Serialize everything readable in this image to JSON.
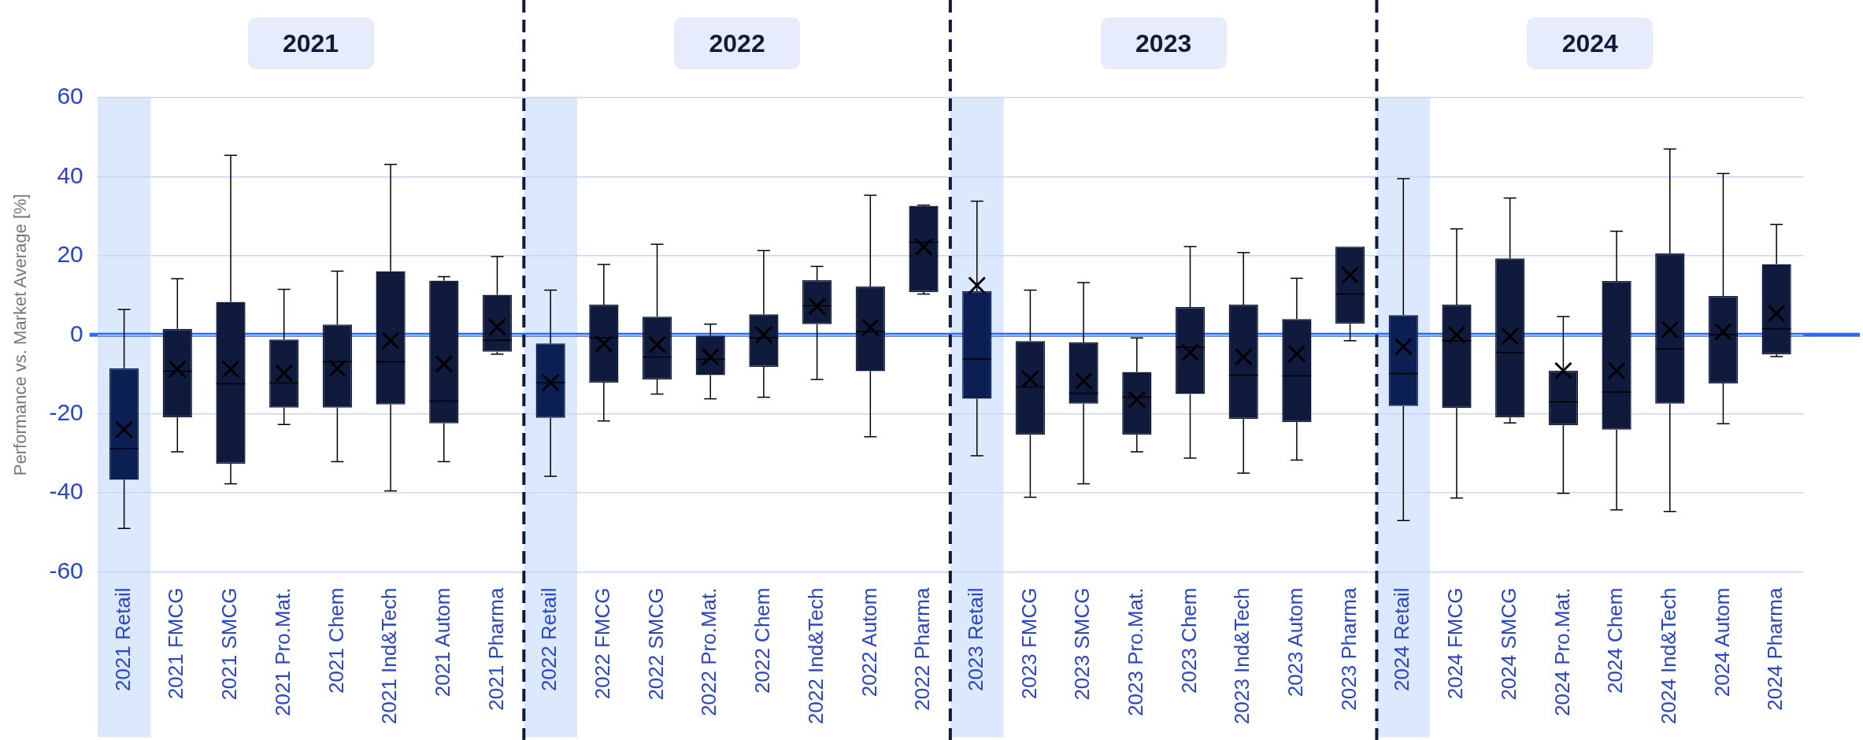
{
  "chart_data": {
    "type": "box",
    "ylabel": "Performance vs. Market Average [%]",
    "categories": [
      "2021 Retail",
      "2021 FMCG",
      "2021 SMCG",
      "2021 Pro.Mat.",
      "2021 Chem",
      "2021 Ind&Tech",
      "2021 Autom",
      "2021 Pharma",
      "2022 Retail",
      "2022 FMCG",
      "2022 SMCG",
      "2022 Pro.Mat.",
      "2022 Chem",
      "2022 Ind&Tech",
      "2022 Autom",
      "2022 Pharma",
      "2023 Retail",
      "2023 FMCG",
      "2023 SMCG",
      "2023 Pro.Mat.",
      "2023 Chem",
      "2023 Ind&Tech",
      "2023 Autom",
      "2023 Pharma",
      "2024 Retail",
      "2024 FMCG",
      "2024 SMCG",
      "2024 Pro.Mat.",
      "2024 Chem",
      "2024 Ind&Tech",
      "2024 Autom",
      "2024 Pharma"
    ],
    "boxes": [
      {
        "low": -49,
        "q1": -36.7,
        "median": -28.8,
        "q3": -8.5,
        "high": 6.4,
        "mean": -24
      },
      {
        "low": -29.6,
        "q1": -20.9,
        "median": -9.2,
        "q3": 1.5,
        "high": 14.2,
        "mean": -8.7
      },
      {
        "low": -37.7,
        "q1": -32.6,
        "median": -12.4,
        "q3": 8.3,
        "high": 45.4,
        "mean": -8.7
      },
      {
        "low": -22.7,
        "q1": -18.4,
        "median": -12.2,
        "q3": -1.2,
        "high": 11.5,
        "mean": -9.7
      },
      {
        "low": -32.1,
        "q1": -18.4,
        "median": -6.8,
        "q3": 2.6,
        "high": 16.1,
        "mean": -8.5
      },
      {
        "low": -39.5,
        "q1": -17.6,
        "median": -6.8,
        "q3": 16.1,
        "high": 43.1,
        "mean": -1.5
      },
      {
        "low": -32.1,
        "q1": -22.4,
        "median": -16.8,
        "q3": 13.7,
        "high": 14.7,
        "mean": -7.4
      },
      {
        "low": -4.9,
        "q1": -4.3,
        "median": -1.4,
        "q3": 10.1,
        "high": 19.8,
        "mean": 2
      },
      {
        "low": -35.8,
        "q1": -21,
        "median": -12.1,
        "q3": -2.2,
        "high": 11.3,
        "mean": -12.1
      },
      {
        "low": -21.8,
        "q1": -12.1,
        "median": -0.8,
        "q3": 7.6,
        "high": 17.8,
        "mean": -2.3
      },
      {
        "low": -15,
        "q1": -11.3,
        "median": -5.6,
        "q3": 4.6,
        "high": 22.9,
        "mean": -2.5
      },
      {
        "low": -16.2,
        "q1": -10.2,
        "median": -6.2,
        "q3": -0.2,
        "high": 2.7,
        "mean": -5.6
      },
      {
        "low": -15.8,
        "q1": -8.1,
        "median": -0.8,
        "q3": 5.2,
        "high": 21.3,
        "mean": 0
      },
      {
        "low": -11.3,
        "q1": 2.7,
        "median": 7.3,
        "q3": 13.8,
        "high": 17.3,
        "mean": 7.2
      },
      {
        "low": -25.8,
        "q1": -9.2,
        "median": 0.8,
        "q3": 12.2,
        "high": 35.3,
        "mean": 1.9
      },
      {
        "low": 10.3,
        "q1": 10.8,
        "median": 23.4,
        "q3": 32.6,
        "high": 32.8,
        "mean": 22.2
      },
      {
        "low": -30.6,
        "q1": -16.2,
        "median": -6.1,
        "q3": 11,
        "high": 33.8,
        "mean": 12.5
      },
      {
        "low": -41.1,
        "q1": -25.3,
        "median": -13.2,
        "q3": -1.6,
        "high": 11.3,
        "mean": -11.2
      },
      {
        "low": -37.7,
        "q1": -17.4,
        "median": -14.8,
        "q3": -1.9,
        "high": 13.2,
        "mean": -11.7
      },
      {
        "low": -29.6,
        "q1": -25.3,
        "median": -15.8,
        "q3": -9.4,
        "high": -0.8,
        "mean": -16.4
      },
      {
        "low": -31.2,
        "q1": -15,
        "median": -3.2,
        "q3": 7,
        "high": 22.3,
        "mean": -4.5
      },
      {
        "low": -35,
        "q1": -21.3,
        "median": -10.2,
        "q3": 7.6,
        "high": 20.8,
        "mean": -5.6
      },
      {
        "low": -31.7,
        "q1": -22.1,
        "median": -10.4,
        "q3": 4,
        "high": 14.3,
        "mean": -4.8
      },
      {
        "low": -1.5,
        "q1": 2.8,
        "median": 10.3,
        "q3": 22.3,
        "high": 22.3,
        "mean": 15.1
      },
      {
        "low": -47,
        "q1": -18,
        "median": -9.8,
        "q3": 5,
        "high": 39.5,
        "mean": -3
      },
      {
        "low": -41.3,
        "q1": -18.5,
        "median": -1.5,
        "q3": 7.6,
        "high": 26.8,
        "mean": 0
      },
      {
        "low": -22.3,
        "q1": -20.9,
        "median": -4.5,
        "q3": 19.3,
        "high": 34.6,
        "mean": -0.4
      },
      {
        "low": -40.1,
        "q1": -22.9,
        "median": -17,
        "q3": -9.1,
        "high": 4.6,
        "mean": -9.1
      },
      {
        "low": -44.3,
        "q1": -24,
        "median": -14.5,
        "q3": 13.6,
        "high": 26.2,
        "mean": -9.1
      },
      {
        "low": -44.7,
        "q1": -17.4,
        "median": -3.6,
        "q3": 20.6,
        "high": 47,
        "mean": 1.3
      },
      {
        "low": -22.5,
        "q1": -12.3,
        "median": 0,
        "q3": 9.8,
        "high": 40.8,
        "mean": 0.8
      },
      {
        "low": -5.5,
        "q1": -5,
        "median": 1.5,
        "q3": 17.9,
        "high": 27.9,
        "mean": 5.4
      }
    ],
    "colors": [
      "#0c1f52",
      "#0f1a3c",
      "#0f1a3c",
      "#0f1a3c",
      "#0f1a3c",
      "#0f1a3c",
      "#0f1a3c",
      "#0f1a3c",
      "#0c1f52",
      "#0f1a3c",
      "#0f1a3c",
      "#0f1a3c",
      "#0f1a3c",
      "#0f1a3c",
      "#0f1a3c",
      "#0f1a3c",
      "#0c1f52",
      "#0f1a3c",
      "#0f1a3c",
      "#0f1a3c",
      "#0f1a3c",
      "#0f1a3c",
      "#0f1a3c",
      "#0f1a3c",
      "#0c1f52",
      "#0f1a3c",
      "#0f1a3c",
      "#0f1a3c",
      "#0f1a3c",
      "#0f1a3c",
      "#0f1a3c",
      "#0f1a3c"
    ],
    "ylim": [
      -60,
      60
    ],
    "yticks": [
      -60,
      -40,
      -20,
      0,
      20,
      40,
      60
    ],
    "grid": "y",
    "legend": false,
    "marker": "cross",
    "ref_lines": [
      {
        "axis": "y",
        "value": 0,
        "color": "#2a6af5"
      }
    ],
    "bands": [
      {
        "axis": "x",
        "from": "2021 Retail",
        "to": "2021 Retail",
        "color": "#dce8fc"
      },
      {
        "axis": "x",
        "from": "2022 Retail",
        "to": "2022 Retail",
        "color": "#dce8fc"
      },
      {
        "axis": "x",
        "from": "2023 Retail",
        "to": "2023 Retail",
        "color": "#dce8fc"
      },
      {
        "axis": "x",
        "from": "2024 Retail",
        "to": "2024 Retail",
        "color": "#dce8fc"
      }
    ],
    "annotations": [
      "2021",
      "2022",
      "2023",
      "2024"
    ]
  }
}
